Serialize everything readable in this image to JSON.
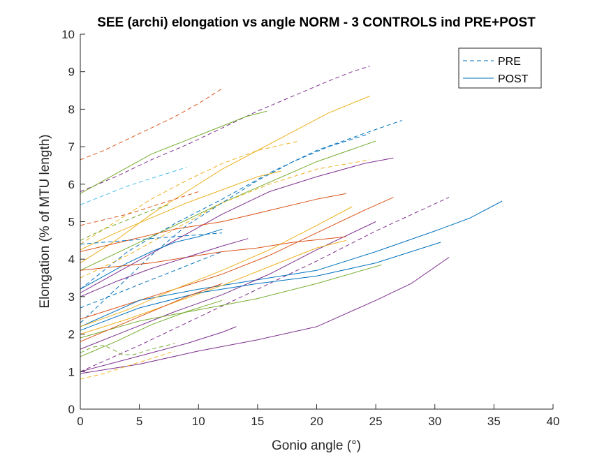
{
  "chart_data": {
    "type": "line",
    "title": "SEE (archi) elongation vs angle NORM - 3 CONTROLS ind PRE+POST",
    "xlabel": "Gonio angle (°)",
    "ylabel": "Elongation (% of MTU length)",
    "xlim": [
      0,
      40
    ],
    "ylim": [
      0,
      10
    ],
    "xticks": [
      "0",
      "5",
      "10",
      "15",
      "20",
      "25",
      "30",
      "35",
      "40"
    ],
    "yticks": [
      "0",
      "1",
      "2",
      "3",
      "4",
      "5",
      "6",
      "7",
      "8",
      "9",
      "10"
    ],
    "grid": false,
    "legend_position": "top-right",
    "legend": [
      {
        "label": "PRE",
        "style": "dashed",
        "color": "#0072BD"
      },
      {
        "label": "POST",
        "style": "solid",
        "color": "#0072BD"
      }
    ],
    "series": [
      {
        "style": "dashed",
        "color": "#D95319",
        "x": [
          0,
          2,
          4,
          6,
          8,
          10,
          12
        ],
        "y": [
          6.65,
          6.9,
          7.2,
          7.5,
          7.8,
          8.15,
          8.55
        ]
      },
      {
        "style": "dashed",
        "color": "#7E2F8E",
        "x": [
          0,
          3,
          6,
          9,
          12,
          15,
          18,
          21,
          23,
          24.5
        ],
        "y": [
          5.8,
          6.2,
          6.65,
          7.05,
          7.5,
          7.95,
          8.35,
          8.75,
          9.0,
          9.15
        ]
      },
      {
        "style": "solid",
        "color": "#77AC30",
        "x": [
          0,
          2,
          4,
          6,
          8,
          10,
          12,
          14,
          15.8
        ],
        "y": [
          5.75,
          6.1,
          6.45,
          6.8,
          7.05,
          7.3,
          7.55,
          7.8,
          7.95
        ]
      },
      {
        "style": "solid",
        "color": "#EDB120",
        "x": [
          0,
          3,
          6,
          9,
          12,
          15,
          18,
          21,
          24.5
        ],
        "y": [
          3.9,
          4.5,
          5.2,
          5.8,
          6.4,
          6.9,
          7.4,
          7.9,
          8.35
        ]
      },
      {
        "style": "dashed",
        "color": "#4DBEEE",
        "x": [
          0,
          2,
          4,
          6,
          8,
          9
        ],
        "y": [
          5.45,
          5.7,
          5.95,
          6.15,
          6.35,
          6.45
        ]
      },
      {
        "style": "dashed",
        "color": "#0072BD",
        "x": [
          0,
          4,
          8,
          12,
          16,
          20,
          24,
          27.2
        ],
        "y": [
          3.2,
          4.2,
          4.95,
          5.6,
          6.3,
          6.9,
          7.35,
          7.7
        ]
      },
      {
        "style": "dashed",
        "color": "#EDB120",
        "x": [
          0,
          3,
          6,
          9,
          12,
          15,
          18.5
        ],
        "y": [
          4.4,
          5.0,
          5.6,
          6.1,
          6.55,
          6.9,
          7.15
        ]
      },
      {
        "style": "solid",
        "color": "#77AC30",
        "x": [
          0,
          4,
          8,
          12,
          16,
          20,
          25
        ],
        "y": [
          3.7,
          4.3,
          4.9,
          5.5,
          6.05,
          6.6,
          7.15
        ]
      },
      {
        "style": "dashed",
        "color": "#0072BD",
        "x": [
          0,
          3,
          6,
          9,
          12,
          15,
          18,
          21,
          24.5
        ],
        "y": [
          2.3,
          3.2,
          4.1,
          4.9,
          5.5,
          6.1,
          6.6,
          7.0,
          7.35
        ]
      },
      {
        "style": "solid",
        "color": "#7E2F8E",
        "x": [
          0,
          4,
          8,
          12,
          16,
          20,
          24,
          26.5
        ],
        "y": [
          3.1,
          3.8,
          4.5,
          5.2,
          5.8,
          6.2,
          6.55,
          6.7
        ]
      },
      {
        "style": "dashed",
        "color": "#EDB120",
        "x": [
          0,
          4,
          8,
          12,
          16,
          20,
          24.5
        ],
        "y": [
          3.5,
          4.1,
          4.8,
          5.5,
          6.0,
          6.4,
          6.65
        ]
      },
      {
        "style": "solid",
        "color": "#EDB120",
        "x": [
          0,
          3,
          6,
          9,
          12,
          15,
          17
        ],
        "y": [
          4.25,
          4.7,
          5.1,
          5.5,
          5.85,
          6.2,
          6.35
        ]
      },
      {
        "style": "dashed",
        "color": "#77AC30",
        "x": [
          0,
          2,
          4,
          6,
          7.5
        ],
        "y": [
          4.5,
          4.8,
          5.05,
          5.3,
          5.45
        ]
      },
      {
        "style": "dashed",
        "color": "#D95319",
        "x": [
          0,
          2,
          4,
          6,
          8,
          10
        ],
        "y": [
          4.9,
          5.05,
          5.2,
          5.4,
          5.6,
          5.8
        ]
      },
      {
        "style": "solid",
        "color": "#D95319",
        "x": [
          0,
          4,
          8,
          12,
          16,
          20,
          22.5
        ],
        "y": [
          4.2,
          4.5,
          4.8,
          5.0,
          5.3,
          5.6,
          5.75
        ]
      },
      {
        "style": "solid",
        "color": "#D95319",
        "x": [
          0,
          4,
          8,
          12,
          16,
          20,
          24,
          26.5
        ],
        "y": [
          2.4,
          2.8,
          3.2,
          3.6,
          4.1,
          4.7,
          5.3,
          5.65
        ]
      },
      {
        "style": "dashed",
        "color": "#7E2F8E",
        "x": [
          0,
          5,
          10,
          15,
          20,
          25,
          31.2
        ],
        "y": [
          1.0,
          1.7,
          2.45,
          3.2,
          3.95,
          4.75,
          5.65
        ]
      },
      {
        "style": "solid",
        "color": "#0072BD",
        "x": [
          0,
          5,
          10,
          15,
          20,
          25,
          30,
          33,
          35.7
        ],
        "y": [
          2.2,
          2.9,
          3.2,
          3.45,
          3.7,
          4.2,
          4.75,
          5.1,
          5.55
        ]
      },
      {
        "style": "solid",
        "color": "#EDB120",
        "x": [
          0,
          4,
          8,
          12,
          16,
          20,
          23
        ],
        "y": [
          2.2,
          2.65,
          3.2,
          3.7,
          4.25,
          4.9,
          5.4
        ]
      },
      {
        "style": "solid",
        "color": "#7E2F8E",
        "x": [
          0,
          4,
          8,
          12,
          16,
          20,
          25
        ],
        "y": [
          1.6,
          2.1,
          2.6,
          3.05,
          3.6,
          4.25,
          5.0
        ]
      },
      {
        "style": "solid",
        "color": "#0072BD",
        "x": [
          0,
          2,
          4,
          6,
          8,
          10,
          12
        ],
        "y": [
          3.2,
          3.55,
          3.9,
          4.2,
          4.45,
          4.6,
          4.8
        ]
      },
      {
        "style": "solid",
        "color": "#D95319",
        "x": [
          0,
          3,
          6,
          9,
          12,
          15,
          18,
          21,
          22.5
        ],
        "y": [
          3.7,
          3.8,
          3.9,
          4.05,
          4.2,
          4.3,
          4.45,
          4.55,
          4.6
        ]
      },
      {
        "style": "solid",
        "color": "#7E2F8E",
        "x": [
          0,
          3,
          6,
          9,
          12,
          14.2
        ],
        "y": [
          3.0,
          3.4,
          3.75,
          4.05,
          4.35,
          4.55
        ]
      },
      {
        "style": "dashed",
        "color": "#0072BD",
        "x": [
          0,
          2,
          4,
          6,
          8,
          10,
          12
        ],
        "y": [
          4.4,
          4.45,
          4.5,
          4.55,
          4.6,
          4.65,
          4.7
        ]
      },
      {
        "style": "solid",
        "color": "#EDB120",
        "x": [
          0,
          4,
          8,
          12,
          16,
          20,
          22.5
        ],
        "y": [
          2.0,
          2.4,
          2.85,
          3.3,
          3.8,
          4.3,
          4.5
        ]
      },
      {
        "style": "solid",
        "color": "#0072BD",
        "x": [
          0,
          5,
          10,
          15,
          20,
          25,
          30.5
        ],
        "y": [
          2.1,
          2.7,
          3.1,
          3.35,
          3.55,
          3.9,
          4.45
        ]
      },
      {
        "style": "solid",
        "color": "#77AC30",
        "x": [
          0,
          5,
          10,
          15,
          20,
          25.5
        ],
        "y": [
          1.9,
          2.35,
          2.65,
          2.95,
          3.35,
          3.85
        ]
      },
      {
        "style": "solid",
        "color": "#7E2F8E",
        "x": [
          0,
          5,
          10,
          15,
          20,
          25,
          28,
          31.2
        ],
        "y": [
          0.95,
          1.2,
          1.55,
          1.85,
          2.2,
          2.9,
          3.35,
          4.05
        ]
      },
      {
        "style": "dashed",
        "color": "#77AC30",
        "x": [
          0,
          1,
          2,
          3,
          3.5,
          4.5,
          6,
          8
        ],
        "y": [
          1.5,
          1.65,
          1.7,
          1.55,
          1.45,
          1.45,
          1.6,
          1.75
        ]
      },
      {
        "style": "dashed",
        "color": "#EDB120",
        "x": [
          0,
          2,
          4,
          6,
          8
        ],
        "y": [
          0.8,
          0.95,
          1.15,
          1.35,
          1.55
        ]
      },
      {
        "style": "solid",
        "color": "#7E2F8E",
        "x": [
          0,
          3,
          6,
          9,
          12,
          13.2
        ],
        "y": [
          1.0,
          1.25,
          1.5,
          1.75,
          2.05,
          2.2
        ]
      },
      {
        "style": "solid",
        "color": "#77AC30",
        "x": [
          0,
          3,
          6,
          9,
          12
        ],
        "y": [
          1.4,
          1.8,
          2.25,
          2.6,
          2.9
        ]
      },
      {
        "style": "dashed",
        "color": "#0072BD",
        "x": [
          0,
          2,
          4,
          6,
          8,
          10,
          12
        ],
        "y": [
          2.7,
          2.95,
          3.2,
          3.45,
          3.7,
          3.95,
          4.2
        ]
      },
      {
        "style": "solid",
        "color": "#D95319",
        "x": [
          0,
          3,
          6,
          9,
          12
        ],
        "y": [
          1.8,
          2.2,
          2.6,
          3.0,
          3.35
        ]
      }
    ]
  }
}
